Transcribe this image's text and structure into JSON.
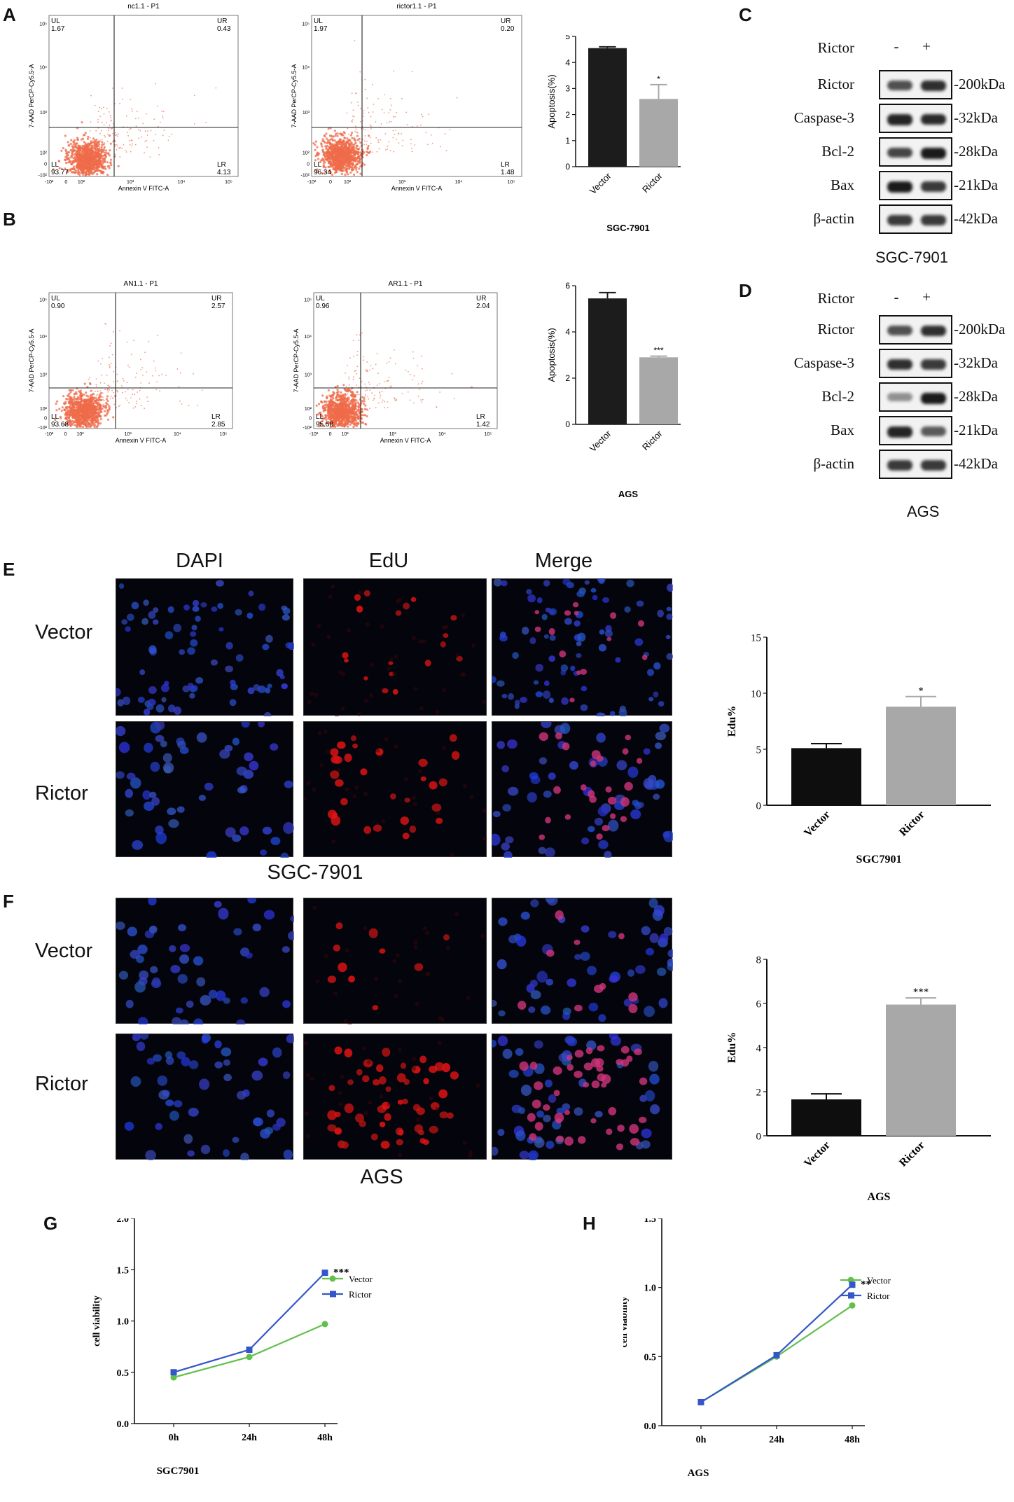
{
  "panels": {
    "A": "A",
    "B": "B",
    "C": "C",
    "D": "D",
    "E": "E",
    "F": "F",
    "G": "G",
    "H": "H"
  },
  "flow": [
    {
      "id": "nc",
      "title": "nc1.1 - P1",
      "ul": "1.67",
      "ur": "0.43",
      "ll": "93.77",
      "lr": "4.13",
      "ylabel": "7-AAD PerCP-Cy5.5-A",
      "xlabel": "Annexin V FITC-A"
    },
    {
      "id": "rictor",
      "title": "rictor1.1 - P1",
      "ul": "1.97",
      "ur": "0.20",
      "ll": "96.34",
      "lr": "1.48",
      "ylabel": "7-AAD PerCP-Cy5.5-A",
      "xlabel": "Annexin V FITC-A"
    },
    {
      "id": "an",
      "title": "AN1.1 - P1",
      "ul": "0.90",
      "ur": "2.57",
      "ll": "93.68",
      "lr": "2.85",
      "ylabel": "7-AAD PerCP-Cy5.5-A",
      "xlabel": "Annexin V FITC-A"
    },
    {
      "id": "ar",
      "title": "AR1.1 - P1",
      "ul": "0.96",
      "ur": "2.04",
      "ll": "95.58",
      "lr": "1.42",
      "ylabel": "7-AAD PerCP-Cy5.5-A",
      "xlabel": "Annexin V FITC-A"
    }
  ],
  "quad_labels": {
    "ul": "UL",
    "ur": "UR",
    "ll": "LL",
    "lr": "LR"
  },
  "flow_ticks": {
    "x": [
      "-10²",
      "0",
      "10²",
      "10³",
      "10⁴",
      "10⁵"
    ],
    "y": [
      "10⁵",
      "10⁴",
      "10³",
      "10²",
      "0",
      "-10²"
    ]
  },
  "western": [
    {
      "cell": "SGC-7901",
      "header": "Rictor",
      "minus": "-",
      "plus": "+",
      "rows": [
        {
          "name": "Rictor",
          "kda": "-200kDa",
          "i": [
            0.75,
            0.9
          ]
        },
        {
          "name": "Caspase-3",
          "kda": "-32kDa",
          "i": [
            0.95,
            0.92
          ]
        },
        {
          "name": "Bcl-2",
          "kda": "-28kDa",
          "i": [
            0.8,
            1.0
          ]
        },
        {
          "name": "Bax",
          "kda": "-21kDa",
          "i": [
            1.0,
            0.85
          ]
        },
        {
          "name": "β-actin",
          "kda": "-42kDa",
          "i": [
            0.85,
            0.85
          ]
        }
      ]
    },
    {
      "cell": "AGS",
      "header": "Rictor",
      "minus": "-",
      "plus": "+",
      "rows": [
        {
          "name": "Rictor",
          "kda": "-200kDa",
          "i": [
            0.75,
            0.9
          ]
        },
        {
          "name": "Caspase-3",
          "kda": "-32kDa",
          "i": [
            0.9,
            0.85
          ]
        },
        {
          "name": "Bcl-2",
          "kda": "-28kDa",
          "i": [
            0.45,
            1.0
          ]
        },
        {
          "name": "Bax",
          "kda": "-21kDa",
          "i": [
            0.95,
            0.7
          ]
        },
        {
          "name": "β-actin",
          "kda": "-42kDa",
          "i": [
            0.85,
            0.85
          ]
        }
      ]
    }
  ],
  "fluor": {
    "columns": [
      "DAPI",
      "EdU",
      "Merge"
    ],
    "rows": [
      "Vector",
      "Rictor"
    ],
    "captions": [
      "SGC-7901",
      "AGS"
    ]
  },
  "chart_data": [
    {
      "type": "bar",
      "id": "A",
      "categories": [
        "Vector",
        "Rictor"
      ],
      "values": [
        4.55,
        2.6
      ],
      "errors": [
        0.05,
        0.55
      ],
      "sig": [
        "",
        "*"
      ],
      "ylabel": "Apoptosis(%)",
      "xlabel": "SGC-7901",
      "ylim": [
        0,
        5
      ],
      "yticks": [
        0,
        1,
        2,
        3,
        4,
        5
      ],
      "colors": [
        "#1c1c1c",
        "#a8a8a8"
      ]
    },
    {
      "type": "bar",
      "id": "B",
      "categories": [
        "Vector",
        "Rictor"
      ],
      "values": [
        5.45,
        2.9
      ],
      "errors": [
        0.25,
        0.05
      ],
      "sig": [
        "",
        "***"
      ],
      "ylabel": "Apoptosis(%)",
      "xlabel": "AGS",
      "ylim": [
        0,
        6
      ],
      "yticks": [
        0,
        2,
        4,
        6
      ],
      "colors": [
        "#1c1c1c",
        "#a8a8a8"
      ]
    },
    {
      "type": "bar",
      "id": "E",
      "categories": [
        "Vector",
        "Rictor"
      ],
      "values": [
        5.1,
        8.8
      ],
      "errors": [
        0.4,
        0.9
      ],
      "sig": [
        "",
        "*"
      ],
      "ylabel": "Edu%",
      "xlabel": "SGC7901",
      "ylim": [
        0,
        15
      ],
      "yticks": [
        0,
        5,
        10,
        15
      ],
      "colors": [
        "#0e0e0e",
        "#a8a8a8"
      ]
    },
    {
      "type": "bar",
      "id": "F",
      "categories": [
        "Vector",
        "Rictor"
      ],
      "values": [
        1.65,
        5.95
      ],
      "errors": [
        0.25,
        0.3
      ],
      "sig": [
        "",
        "***"
      ],
      "ylabel": "Edu%",
      "xlabel": "AGS",
      "ylim": [
        0,
        8
      ],
      "yticks": [
        0,
        2,
        4,
        6,
        8
      ],
      "colors": [
        "#0e0e0e",
        "#a8a8a8"
      ]
    },
    {
      "type": "line",
      "id": "G",
      "x": [
        "0h",
        "24h",
        "48h"
      ],
      "series": [
        {
          "name": "Vector",
          "values": [
            0.45,
            0.65,
            0.97
          ],
          "color": "#63c04d",
          "marker": "circle"
        },
        {
          "name": "Rictor",
          "values": [
            0.5,
            0.72,
            1.47
          ],
          "color": "#3556c8",
          "marker": "square"
        }
      ],
      "sig": "***",
      "ylabel": "cell viability",
      "xlabel": "SGC7901",
      "ylim": [
        0,
        2.0
      ],
      "yticks": [
        "0.0",
        "0.5",
        "1.0",
        "1.5",
        "2.0"
      ]
    },
    {
      "type": "line",
      "id": "H",
      "x": [
        "0h",
        "24h",
        "48h"
      ],
      "series": [
        {
          "name": "Vector",
          "values": [
            0.17,
            0.5,
            0.87
          ],
          "color": "#63c04d",
          "marker": "circle"
        },
        {
          "name": "Rictor",
          "values": [
            0.17,
            0.51,
            1.02
          ],
          "color": "#3556c8",
          "marker": "square"
        }
      ],
      "sig": "**",
      "ylabel": "cell viability",
      "xlabel": "AGS",
      "ylim": [
        0,
        1.5
      ],
      "yticks": [
        "0.0",
        "0.5",
        "1.0",
        "1.5"
      ]
    }
  ]
}
